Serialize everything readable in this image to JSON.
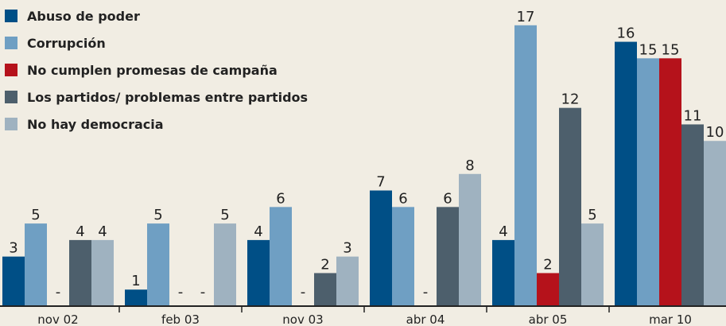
{
  "chart_data": {
    "type": "bar",
    "categories": [
      "nov 02",
      "feb 03",
      "nov 03",
      "abr 04",
      "abr 05",
      "mar 10"
    ],
    "series": [
      {
        "name": "Abuso de poder",
        "color": "#004f86",
        "values": [
          3,
          1,
          4,
          7,
          4,
          16
        ],
        "value_labels": [
          "3",
          "1",
          "4",
          "7",
          "4",
          "16"
        ]
      },
      {
        "name": "Corrupción",
        "color": "#6f9fc3",
        "values": [
          5,
          5,
          6,
          6,
          17,
          15
        ],
        "value_labels": [
          "5",
          "5",
          "6",
          "6",
          "17",
          "15"
        ]
      },
      {
        "name": "No cumplen promesas de campaña",
        "color": "#b5121b",
        "values": [
          null,
          null,
          null,
          null,
          2,
          15
        ],
        "value_labels": [
          "-",
          "-",
          "-",
          "-",
          "2",
          "15"
        ]
      },
      {
        "name": "Los partidos/ problemas entre partidos",
        "color": "#4d5f6c",
        "values": [
          4,
          null,
          2,
          6,
          12,
          11
        ],
        "value_labels": [
          "4",
          "-",
          "2",
          "6",
          "12",
          "11"
        ]
      },
      {
        "name": "No hay democracia",
        "color": "#9fb2c0",
        "values": [
          4,
          5,
          3,
          8,
          5,
          10
        ],
        "value_labels": [
          "4",
          "5",
          "3",
          "8",
          "5",
          "10"
        ]
      }
    ],
    "ylim": [
      0,
      18
    ],
    "legend": "top-left"
  }
}
